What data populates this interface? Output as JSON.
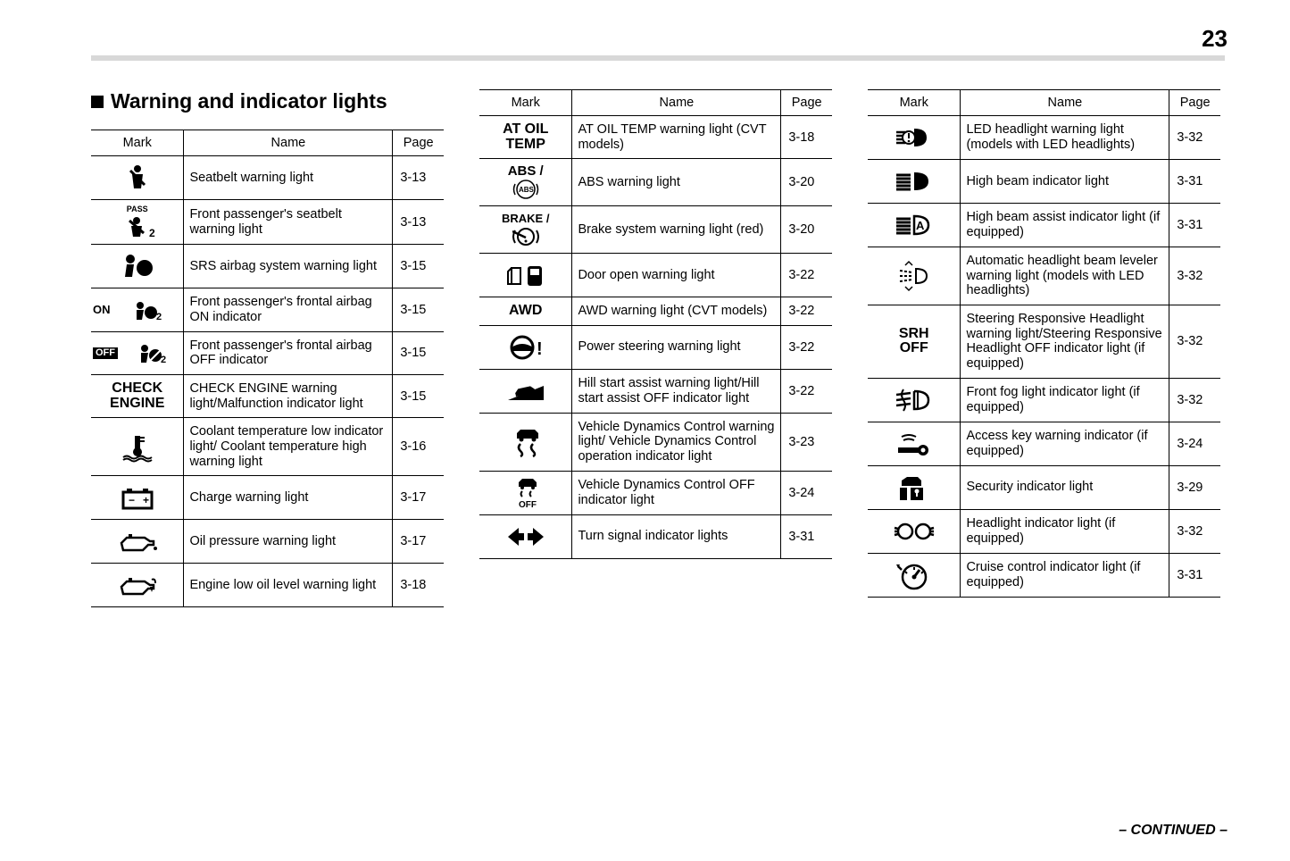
{
  "page_number": "23",
  "section_title": "Warning and indicator lights",
  "continued_label": "– CONTINUED –",
  "headers": {
    "mark": "Mark",
    "name": "Name",
    "page": "Page"
  },
  "col1": [
    {
      "icon": "seatbelt",
      "name": "Seatbelt warning light",
      "page": "3-13"
    },
    {
      "icon": "pass-seatbelt",
      "name": "Front passenger's seatbelt warning light",
      "page": "3-13"
    },
    {
      "icon": "airbag",
      "name": "SRS airbag system warning light",
      "page": "3-15"
    },
    {
      "icon": "airbag-on",
      "name": "Front passenger's frontal airbag ON indicator",
      "page": "3-15"
    },
    {
      "icon": "airbag-off",
      "name": "Front passenger's frontal airbag OFF indicator",
      "page": "3-15"
    },
    {
      "icon": "check-engine",
      "mark_text": "CHECK\nENGINE",
      "name": "CHECK ENGINE warning light/Malfunction indicator light",
      "page": "3-15"
    },
    {
      "icon": "coolant",
      "name": "Coolant temperature low indicator light/ Coolant temperature high warning light",
      "page": "3-16"
    },
    {
      "icon": "battery",
      "name": "Charge warning light",
      "page": "3-17"
    },
    {
      "icon": "oil-pressure",
      "name": "Oil pressure warning light",
      "page": "3-17"
    },
    {
      "icon": "oil-level",
      "name": "Engine low oil level warning light",
      "page": "3-18"
    }
  ],
  "col2": [
    {
      "icon": "at-oil-temp",
      "mark_text": "AT OIL\nTEMP",
      "name": "AT OIL TEMP warning light (CVT models)",
      "page": "3-18"
    },
    {
      "icon": "abs",
      "name": "ABS warning light",
      "page": "3-20"
    },
    {
      "icon": "brake",
      "name": "Brake system warning light (red)",
      "page": "3-20"
    },
    {
      "icon": "door-open",
      "name": "Door open warning light",
      "page": "3-22"
    },
    {
      "icon": "awd",
      "mark_text": "AWD",
      "name": "AWD warning light (CVT models)",
      "page": "3-22"
    },
    {
      "icon": "power-steering",
      "name": "Power steering warning light",
      "page": "3-22"
    },
    {
      "icon": "hill-assist",
      "name": "Hill start assist warning light/Hill start assist OFF indicator light",
      "page": "3-22"
    },
    {
      "icon": "vdc",
      "name": "Vehicle Dynamics Control warning light/ Vehicle Dynamics Control operation indicator light",
      "page": "3-23"
    },
    {
      "icon": "vdc-off",
      "name": "Vehicle Dynamics Control OFF indicator light",
      "page": "3-24"
    },
    {
      "icon": "turn-signal",
      "name": "Turn signal indicator lights",
      "page": "3-31"
    }
  ],
  "col3": [
    {
      "icon": "led-headlight",
      "name": "LED headlight warning light (models with LED headlights)",
      "page": "3-32"
    },
    {
      "icon": "high-beam",
      "name": "High beam indicator light",
      "page": "3-31"
    },
    {
      "icon": "high-beam-assist",
      "name": "High beam assist indicator light (if equipped)",
      "page": "3-31"
    },
    {
      "icon": "auto-leveler",
      "name": "Automatic headlight beam leveler warning light (models with LED headlights)",
      "page": "3-32"
    },
    {
      "icon": "srh-off",
      "mark_text": "SRH\nOFF",
      "name": "Steering Responsive Headlight warning light/Steering Responsive Headlight OFF indicator light (if equipped)",
      "page": "3-32"
    },
    {
      "icon": "fog-light",
      "name": "Front fog light indicator light (if equipped)",
      "page": "3-32"
    },
    {
      "icon": "access-key",
      "name": "Access key warning indicator (if equipped)",
      "page": "3-24"
    },
    {
      "icon": "security",
      "name": "Security indicator light",
      "page": "3-29"
    },
    {
      "icon": "headlight",
      "name": "Headlight indicator light (if equipped)",
      "page": "3-32"
    },
    {
      "icon": "cruise",
      "name": "Cruise control indicator light (if equipped)",
      "page": "3-31"
    }
  ]
}
